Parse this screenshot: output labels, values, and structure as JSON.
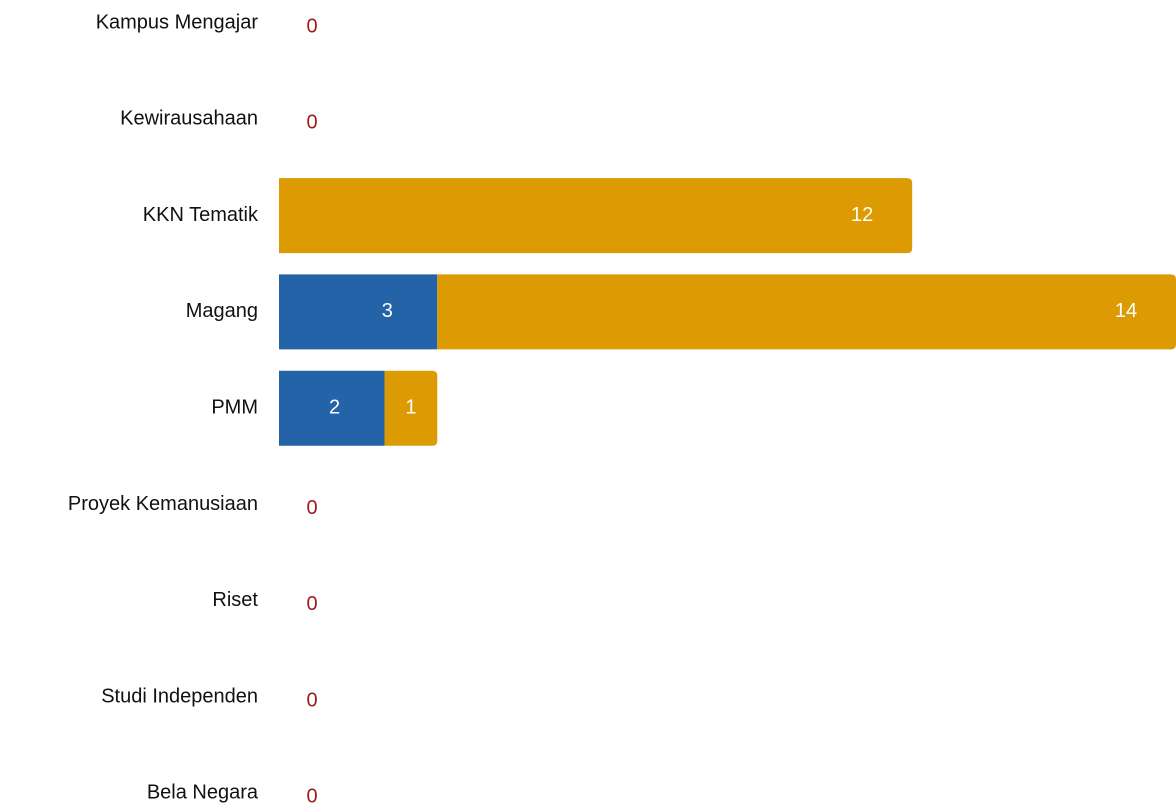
{
  "chart_data": {
    "type": "stacked_barh",
    "categories": [
      "Kampus Mengajar",
      "Kewirausahaan",
      "KKN Tematik",
      "Magang",
      "PMM",
      "Proyek Kemanusiaan",
      "Riset",
      "Studi Independen",
      "Bela Negara"
    ],
    "series": [
      {
        "color": "#2463a8",
        "values": [
          0,
          0,
          0,
          3,
          2,
          0,
          0,
          0,
          0
        ]
      },
      {
        "color": "#dc9b03",
        "values": [
          0,
          0,
          12,
          14,
          1,
          0,
          0,
          0,
          0
        ]
      }
    ],
    "xlim": [
      0,
      17
    ]
  }
}
